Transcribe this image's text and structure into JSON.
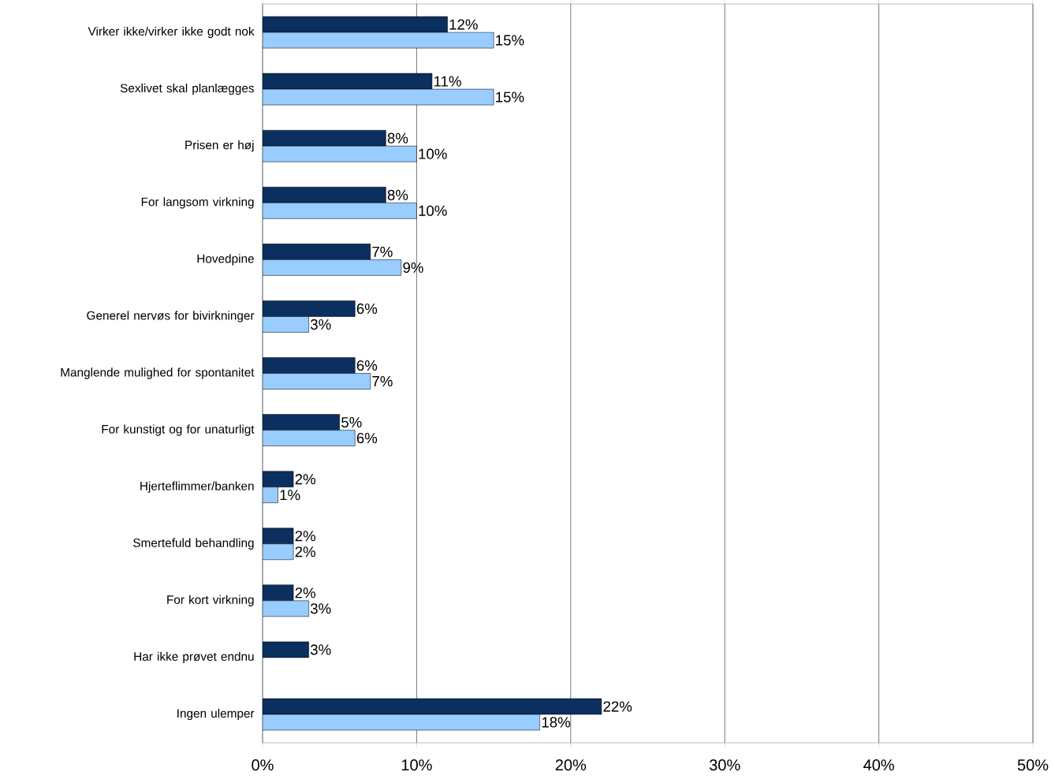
{
  "chart_data": {
    "type": "bar",
    "orientation": "horizontal",
    "categories": [
      "Virker ikke/virker ikke godt nok",
      "Sexlivet skal planlægges",
      "Prisen er høj",
      "For langsom virkning",
      "Hovedpine",
      "Generel nervøs for bivirkninger",
      "Manglende mulighed for spontanitet",
      "For kunstigt og for unaturligt",
      "Hjerteflimmer/banken",
      "Smertefuld behandling",
      "For kort virkning",
      "Har ikke prøvet endnu",
      "Ingen ulemper"
    ],
    "series": [
      {
        "color": "#0b2f5e",
        "values": [
          12,
          11,
          8,
          8,
          7,
          6,
          6,
          5,
          2,
          2,
          2,
          3,
          22
        ],
        "value_labels": [
          "12%",
          "11%",
          "8%",
          "8%",
          "7%",
          "6%",
          "6%",
          "5%",
          "2%",
          "2%",
          "2%",
          "3%",
          "22%"
        ]
      },
      {
        "color": "#99ccff",
        "values": [
          15,
          15,
          10,
          10,
          9,
          3,
          7,
          6,
          1,
          2,
          3,
          null,
          18
        ],
        "value_labels": [
          "15%",
          "15%",
          "10%",
          "10%",
          "9%",
          "3%",
          "7%",
          "6%",
          "1%",
          "2%",
          "3%",
          null,
          "18%"
        ]
      }
    ],
    "xlim": [
      0,
      50
    ],
    "xticks": [
      {
        "value": 0,
        "label": "0%"
      },
      {
        "value": 10,
        "label": "10%"
      },
      {
        "value": 20,
        "label": "20%"
      },
      {
        "value": 30,
        "label": "30%"
      },
      {
        "value": 40,
        "label": "40%"
      },
      {
        "value": 50,
        "label": "50%"
      }
    ],
    "grid": "x"
  }
}
